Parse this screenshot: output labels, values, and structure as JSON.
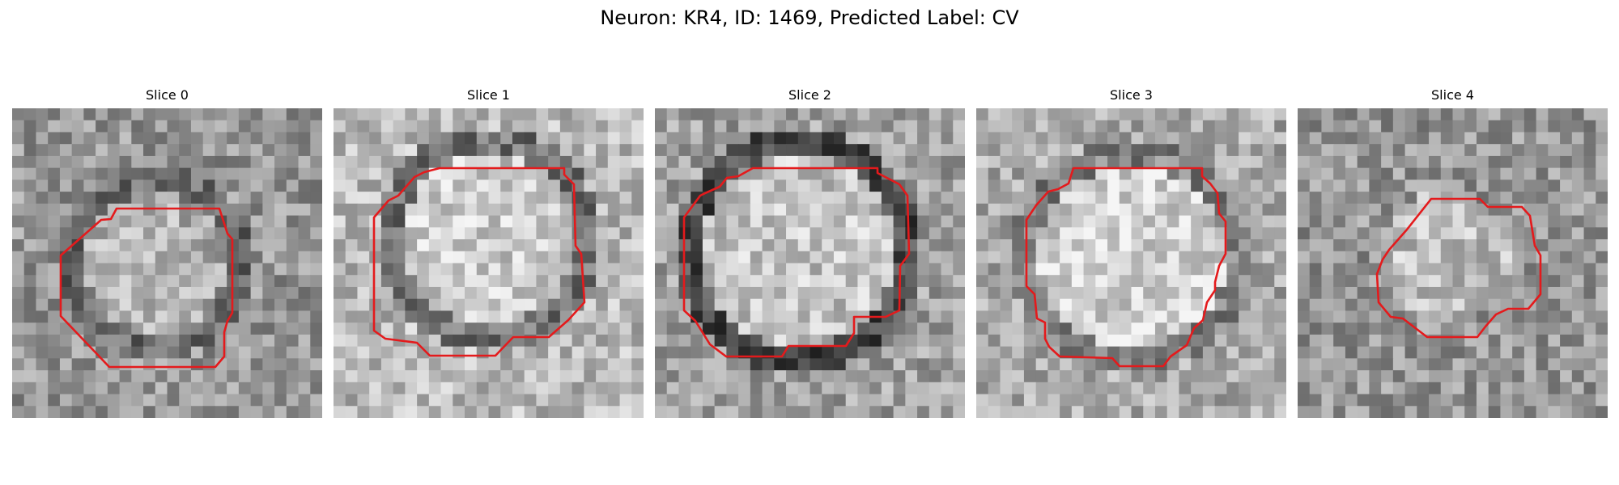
{
  "figure": {
    "title": "Neuron: KR4, ID: 1469, Predicted Label: CV"
  },
  "panels": [
    {
      "title": "Slice 0",
      "image": "grayscale-microscopy-patch",
      "outline_color": "#e41a1c"
    },
    {
      "title": "Slice 1",
      "image": "grayscale-microscopy-patch",
      "outline_color": "#e41a1c"
    },
    {
      "title": "Slice 2",
      "image": "grayscale-microscopy-patch",
      "outline_color": "#e41a1c"
    },
    {
      "title": "Slice 3",
      "image": "grayscale-microscopy-patch",
      "outline_color": "#e41a1c"
    },
    {
      "title": "Slice 4",
      "image": "grayscale-microscopy-patch",
      "outline_color": "#e41a1c"
    }
  ]
}
